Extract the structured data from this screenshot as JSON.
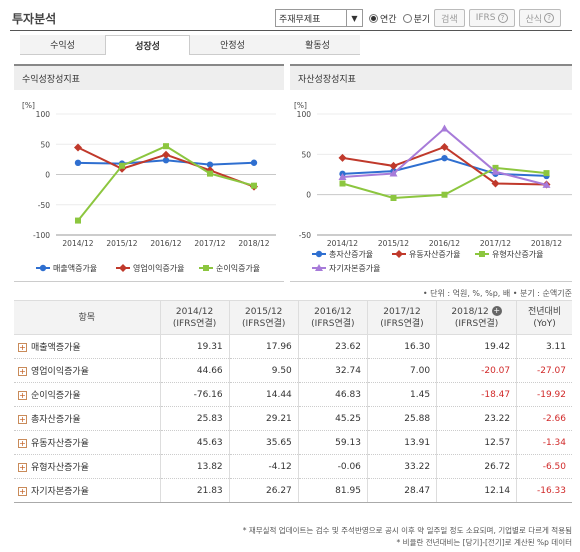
{
  "header": {
    "title": "투자분석",
    "select_value": "주재무제표",
    "radio_annual": "연간",
    "radio_quarter": "분기",
    "search_btn": "검색",
    "ifrs_btn": "IFRS",
    "calc_btn": "산식"
  },
  "tabs": [
    "수익성",
    "성장성",
    "안정성",
    "활동성"
  ],
  "left_chart_title": "수익성장성지표",
  "right_chart_title": "자산성장성지표",
  "unit_note": "• 단위 : 억원, %, %p, 배   • 분기 : 순액기준",
  "table": {
    "col_item": "항목",
    "columns": [
      {
        "line1": "2014/12",
        "line2": "(IFRS연결)"
      },
      {
        "line1": "2015/12",
        "line2": "(IFRS연결)"
      },
      {
        "line1": "2016/12",
        "line2": "(IFRS연결)"
      },
      {
        "line1": "2017/12",
        "line2": "(IFRS연결)"
      },
      {
        "line1": "2018/12",
        "line2": "(IFRS연결)"
      },
      {
        "line1": "전년대비",
        "line2": "(YoY)"
      }
    ],
    "rows": [
      {
        "label": "매출액증가율",
        "values": [
          "19.31",
          "17.96",
          "23.62",
          "16.30",
          "19.42",
          "3.11"
        ]
      },
      {
        "label": "영업이익증가율",
        "values": [
          "44.66",
          "9.50",
          "32.74",
          "7.00",
          "-20.07",
          "-27.07"
        ]
      },
      {
        "label": "순이익증가율",
        "values": [
          "-76.16",
          "14.44",
          "46.83",
          "1.45",
          "-18.47",
          "-19.92"
        ]
      },
      {
        "label": "총자산증가율",
        "values": [
          "25.83",
          "29.21",
          "45.25",
          "25.88",
          "23.22",
          "-2.66"
        ]
      },
      {
        "label": "유동자산증가율",
        "values": [
          "45.63",
          "35.65",
          "59.13",
          "13.91",
          "12.57",
          "-1.34"
        ]
      },
      {
        "label": "유형자산증가율",
        "values": [
          "13.82",
          "-4.12",
          "-0.06",
          "33.22",
          "26.72",
          "-6.50"
        ]
      },
      {
        "label": "자기자본증가율",
        "values": [
          "21.83",
          "26.27",
          "81.95",
          "28.47",
          "12.14",
          "-16.33"
        ]
      }
    ]
  },
  "footnotes": [
    "* 재무실적 업데이트는 검수 및 주석반영으로 공시 이후 약 일주일 정도 소요되며, 기업별로 다르게 적용됨",
    "* 비율란 전년대비는 [당기]-[전기]로 계산된 %p 데이터"
  ],
  "chart_data": [
    {
      "type": "line",
      "title": "수익성장성지표",
      "ylabel": "[%]",
      "categories": [
        "2014/12",
        "2015/12",
        "2016/12",
        "2017/12",
        "2018/12"
      ],
      "ylim": [
        -100,
        100
      ],
      "yticks": [
        100,
        50,
        0,
        -50,
        -100
      ],
      "legend_position": "bottom",
      "series": [
        {
          "name": "매출액증가율",
          "color": "#2f6fd0",
          "marker": "circle",
          "values": [
            19.31,
            17.96,
            23.62,
            16.3,
            19.42
          ]
        },
        {
          "name": "영업이익증가율",
          "color": "#c0392b",
          "marker": "diamond",
          "values": [
            44.66,
            9.5,
            32.74,
            7.0,
            -20.07
          ]
        },
        {
          "name": "순이익증가율",
          "color": "#8cc63f",
          "marker": "square",
          "values": [
            -76.16,
            14.44,
            46.83,
            1.45,
            -18.47
          ]
        }
      ]
    },
    {
      "type": "line",
      "title": "자산성장성지표",
      "ylabel": "[%]",
      "categories": [
        "2014/12",
        "2015/12",
        "2016/12",
        "2017/12",
        "2018/12"
      ],
      "ylim": [
        -50,
        100
      ],
      "yticks": [
        100,
        50,
        0,
        -50
      ],
      "legend_position": "bottom",
      "series": [
        {
          "name": "총자산증가율",
          "color": "#2f6fd0",
          "marker": "circle",
          "values": [
            25.83,
            29.21,
            45.25,
            25.88,
            23.22
          ]
        },
        {
          "name": "유동자산증가율",
          "color": "#c0392b",
          "marker": "diamond",
          "values": [
            45.63,
            35.65,
            59.13,
            13.91,
            12.57
          ]
        },
        {
          "name": "유형자산증가율",
          "color": "#8cc63f",
          "marker": "square",
          "values": [
            13.82,
            -4.12,
            -0.06,
            33.22,
            26.72
          ]
        },
        {
          "name": "자기자본증가율",
          "color": "#a77bd9",
          "marker": "triangle",
          "values": [
            21.83,
            26.27,
            81.95,
            28.47,
            12.14
          ]
        }
      ]
    }
  ]
}
